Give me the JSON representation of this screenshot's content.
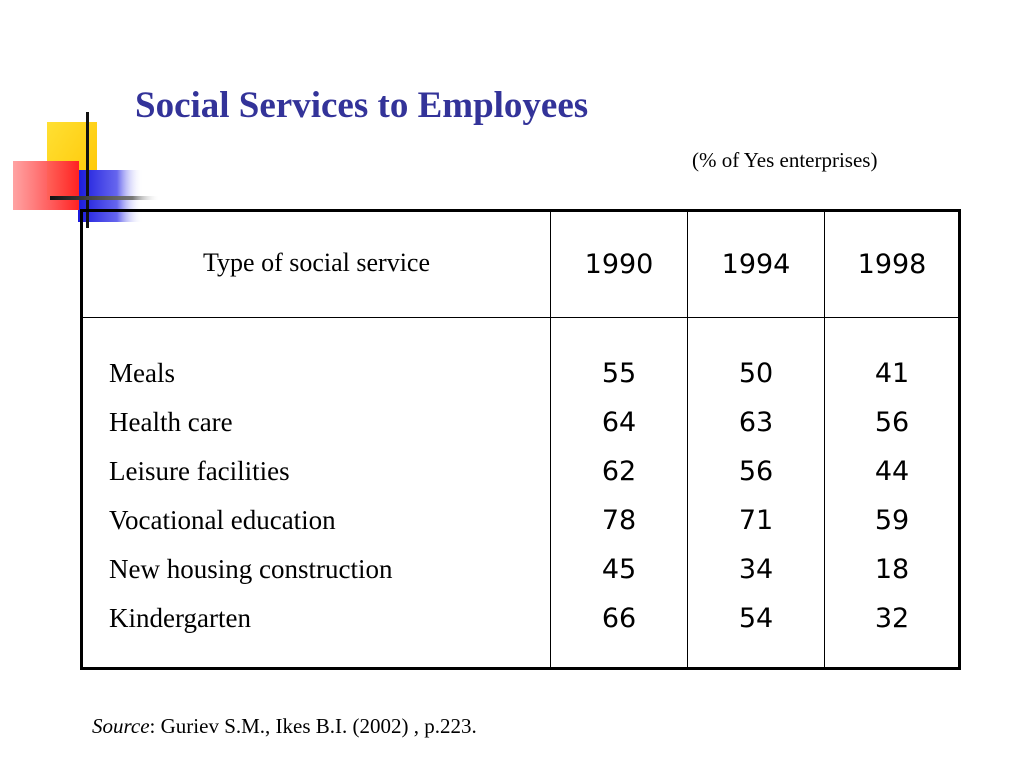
{
  "slide": {
    "title": "Social Services to Employees",
    "subtitle": "(% of Yes enterprises)",
    "source_label": "Source",
    "source_text": ": Guriev S.M., Ikes B.I. (2002) , p.223."
  },
  "table": {
    "header_type": "Type of social service",
    "years": [
      "1990",
      "1994",
      "1998"
    ],
    "rows": [
      {
        "label": "Meals",
        "values": [
          "55",
          "50",
          "41"
        ]
      },
      {
        "label": "Health care",
        "values": [
          "64",
          "63",
          "56"
        ]
      },
      {
        "label": "Leisure facilities",
        "values": [
          "62",
          "56",
          "44"
        ]
      },
      {
        "label": "Vocational education",
        "values": [
          "78",
          "71",
          "59"
        ]
      },
      {
        "label": "New housing construction",
        "values": [
          "45",
          "34",
          "18"
        ]
      },
      {
        "label": "Kindergarten",
        "values": [
          "66",
          "54",
          "32"
        ]
      }
    ]
  },
  "colors": {
    "title": "#333399",
    "deco_yellow": "#FFD700",
    "deco_red": "#FF3333",
    "deco_blue": "#2222DD"
  }
}
